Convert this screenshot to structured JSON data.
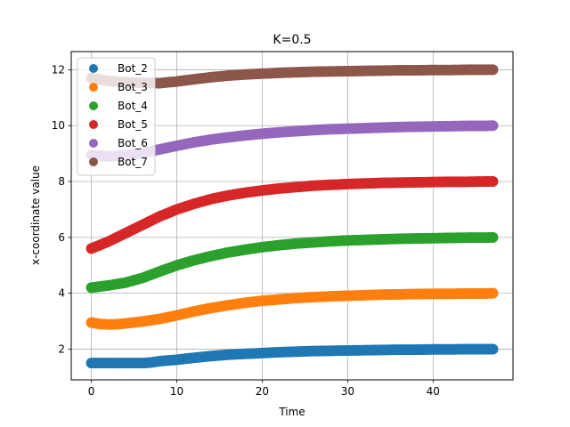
{
  "chart_data": {
    "type": "scatter",
    "title": "K=0.5",
    "xlabel": "Time",
    "ylabel": "x-coordinate value",
    "xlim": [
      -2.35,
      49.35
    ],
    "ylim": [
      0.9,
      12.65
    ],
    "xticks": [
      0,
      10,
      20,
      30,
      40
    ],
    "yticks": [
      2,
      4,
      6,
      8,
      10,
      12
    ],
    "grid": true,
    "legend_position": "upper left",
    "series": [
      {
        "name": "Bot_2",
        "color": "#1f77b4",
        "points": [
          [
            0,
            1.5
          ],
          [
            2,
            1.5
          ],
          [
            4,
            1.5
          ],
          [
            6,
            1.5
          ],
          [
            7,
            1.52
          ],
          [
            8,
            1.57
          ],
          [
            10,
            1.62
          ],
          [
            12,
            1.69
          ],
          [
            14,
            1.75
          ],
          [
            16,
            1.8
          ],
          [
            18,
            1.83
          ],
          [
            20,
            1.86
          ],
          [
            22,
            1.89
          ],
          [
            24,
            1.91
          ],
          [
            26,
            1.93
          ],
          [
            28,
            1.94
          ],
          [
            30,
            1.95
          ],
          [
            32,
            1.96
          ],
          [
            34,
            1.97
          ],
          [
            36,
            1.98
          ],
          [
            38,
            1.98
          ],
          [
            40,
            1.99
          ],
          [
            42,
            1.99
          ],
          [
            44,
            2.0
          ],
          [
            46,
            2.0
          ],
          [
            47,
            2.0
          ]
        ]
      },
      {
        "name": "Bot_3",
        "color": "#ff7f0e",
        "points": [
          [
            0,
            2.95
          ],
          [
            1,
            2.9
          ],
          [
            2,
            2.88
          ],
          [
            3,
            2.89
          ],
          [
            4,
            2.92
          ],
          [
            6,
            2.99
          ],
          [
            8,
            3.08
          ],
          [
            10,
            3.21
          ],
          [
            12,
            3.35
          ],
          [
            14,
            3.47
          ],
          [
            16,
            3.57
          ],
          [
            18,
            3.66
          ],
          [
            20,
            3.73
          ],
          [
            22,
            3.78
          ],
          [
            24,
            3.83
          ],
          [
            26,
            3.86
          ],
          [
            28,
            3.89
          ],
          [
            30,
            3.91
          ],
          [
            32,
            3.93
          ],
          [
            34,
            3.95
          ],
          [
            36,
            3.96
          ],
          [
            38,
            3.97
          ],
          [
            40,
            3.98
          ],
          [
            42,
            3.98
          ],
          [
            44,
            3.99
          ],
          [
            46,
            3.99
          ],
          [
            47,
            4.0
          ]
        ]
      },
      {
        "name": "Bot_4",
        "color": "#2ca02c",
        "points": [
          [
            0,
            4.2
          ],
          [
            2,
            4.28
          ],
          [
            4,
            4.38
          ],
          [
            6,
            4.55
          ],
          [
            8,
            4.78
          ],
          [
            10,
            5.0
          ],
          [
            12,
            5.18
          ],
          [
            14,
            5.33
          ],
          [
            16,
            5.46
          ],
          [
            18,
            5.56
          ],
          [
            20,
            5.65
          ],
          [
            22,
            5.72
          ],
          [
            24,
            5.78
          ],
          [
            26,
            5.82
          ],
          [
            28,
            5.86
          ],
          [
            30,
            5.89
          ],
          [
            32,
            5.91
          ],
          [
            34,
            5.93
          ],
          [
            36,
            5.95
          ],
          [
            38,
            5.96
          ],
          [
            40,
            5.97
          ],
          [
            42,
            5.98
          ],
          [
            44,
            5.99
          ],
          [
            46,
            5.99
          ],
          [
            47,
            6.0
          ]
        ]
      },
      {
        "name": "Bot_5",
        "color": "#d62728",
        "points": [
          [
            0,
            5.6
          ],
          [
            2,
            5.85
          ],
          [
            4,
            6.15
          ],
          [
            6,
            6.45
          ],
          [
            8,
            6.75
          ],
          [
            10,
            7.0
          ],
          [
            12,
            7.2
          ],
          [
            14,
            7.37
          ],
          [
            16,
            7.5
          ],
          [
            18,
            7.6
          ],
          [
            20,
            7.68
          ],
          [
            22,
            7.75
          ],
          [
            24,
            7.8
          ],
          [
            26,
            7.85
          ],
          [
            28,
            7.88
          ],
          [
            30,
            7.91
          ],
          [
            32,
            7.93
          ],
          [
            34,
            7.95
          ],
          [
            36,
            7.96
          ],
          [
            38,
            7.97
          ],
          [
            40,
            7.98
          ],
          [
            42,
            7.99
          ],
          [
            44,
            7.99
          ],
          [
            46,
            8.0
          ],
          [
            47,
            8.0
          ]
        ]
      },
      {
        "name": "Bot_6",
        "color": "#9467bd",
        "points": [
          [
            0,
            8.95
          ],
          [
            2,
            8.9
          ],
          [
            4,
            8.93
          ],
          [
            6,
            9.02
          ],
          [
            8,
            9.15
          ],
          [
            10,
            9.28
          ],
          [
            12,
            9.4
          ],
          [
            14,
            9.5
          ],
          [
            16,
            9.58
          ],
          [
            18,
            9.65
          ],
          [
            20,
            9.71
          ],
          [
            22,
            9.76
          ],
          [
            24,
            9.8
          ],
          [
            26,
            9.84
          ],
          [
            28,
            9.87
          ],
          [
            30,
            9.89
          ],
          [
            32,
            9.91
          ],
          [
            34,
            9.93
          ],
          [
            36,
            9.95
          ],
          [
            38,
            9.96
          ],
          [
            40,
            9.97
          ],
          [
            42,
            9.98
          ],
          [
            44,
            9.99
          ],
          [
            46,
            9.99
          ],
          [
            47,
            10.0
          ]
        ]
      },
      {
        "name": "Bot_7",
        "color": "#8c564b",
        "points": [
          [
            0,
            11.7
          ],
          [
            2,
            11.6
          ],
          [
            4,
            11.55
          ],
          [
            6,
            11.53
          ],
          [
            8,
            11.52
          ],
          [
            10,
            11.58
          ],
          [
            12,
            11.66
          ],
          [
            14,
            11.73
          ],
          [
            16,
            11.79
          ],
          [
            18,
            11.83
          ],
          [
            20,
            11.86
          ],
          [
            22,
            11.89
          ],
          [
            24,
            11.91
          ],
          [
            26,
            11.93
          ],
          [
            28,
            11.94
          ],
          [
            30,
            11.95
          ],
          [
            32,
            11.96
          ],
          [
            34,
            11.97
          ],
          [
            36,
            11.98
          ],
          [
            38,
            11.98
          ],
          [
            40,
            11.99
          ],
          [
            42,
            11.99
          ],
          [
            44,
            12.0
          ],
          [
            46,
            12.0
          ],
          [
            47,
            12.0
          ]
        ]
      }
    ]
  }
}
